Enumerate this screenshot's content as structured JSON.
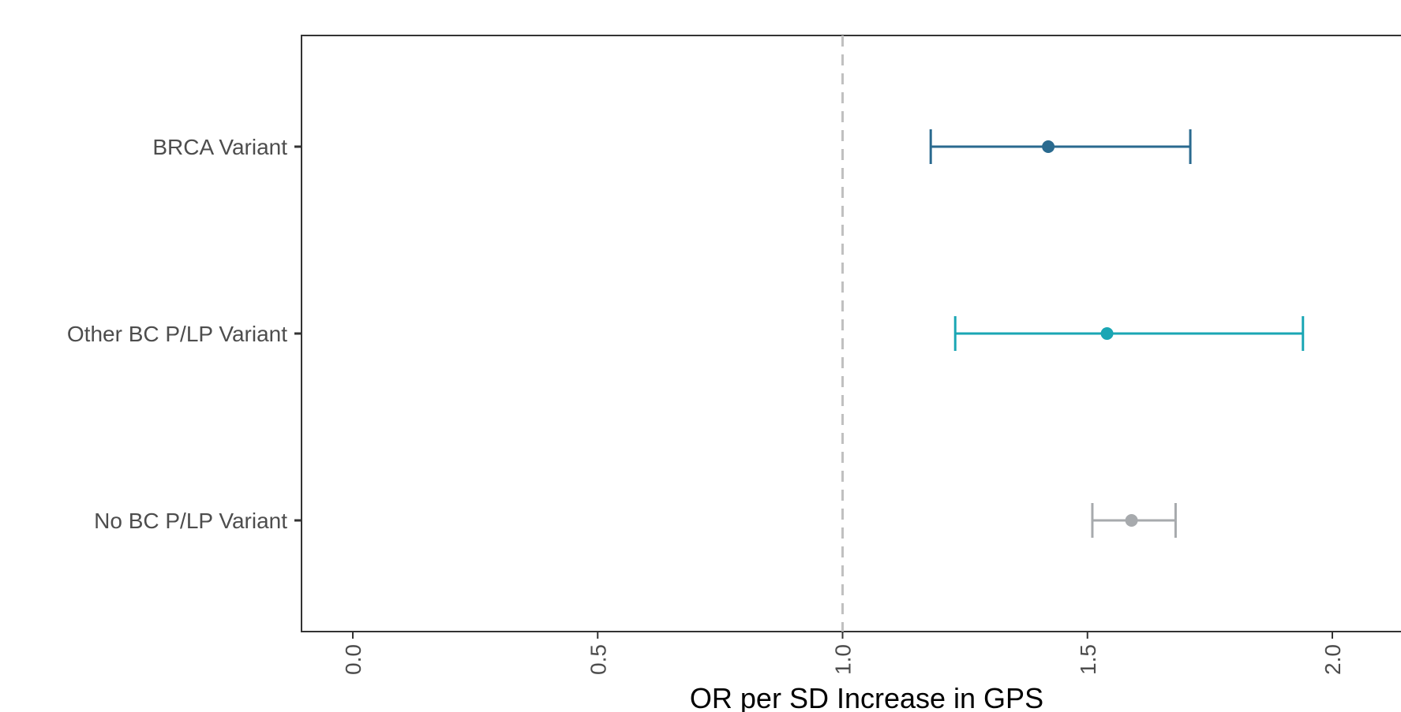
{
  "chart_data": {
    "type": "forest",
    "title": "",
    "xlabel": "OR per SD Increase in GPS",
    "ylabel": "",
    "xlim": [
      -0.05,
      2.2
    ],
    "x_ticks": [
      0.0,
      0.5,
      1.0,
      1.5,
      2.0
    ],
    "x_tick_labels": [
      "0.0",
      "0.5",
      "1.0",
      "1.5",
      "2.0"
    ],
    "reference_line": 1.0,
    "grid": false,
    "legend": "none",
    "categories": [
      "BRCA Variant",
      "Other BC P/LP Variant",
      "No BC P/LP Variant"
    ],
    "series": [
      {
        "category": "BRCA Variant",
        "estimate": 1.42,
        "lower": 1.18,
        "upper": 1.71,
        "color": "#2a6a8f"
      },
      {
        "category": "Other BC P/LP Variant",
        "estimate": 1.54,
        "lower": 1.23,
        "upper": 1.94,
        "color": "#1aa6b4"
      },
      {
        "category": "No BC P/LP Variant",
        "estimate": 1.59,
        "lower": 1.51,
        "upper": 1.68,
        "color": "#a7aaad"
      }
    ],
    "colors": {
      "reference_line": "#c0c0c0",
      "axis": "#333333",
      "tick_label": "#4d4d4d",
      "axis_title": "#000000"
    }
  }
}
